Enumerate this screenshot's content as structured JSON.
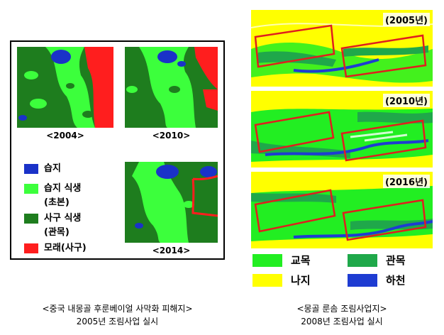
{
  "left": {
    "maps": [
      {
        "label": "<2004>"
      },
      {
        "label": "<2010>"
      },
      {
        "label": "<2014>"
      }
    ],
    "legend": [
      {
        "label": "습지",
        "color": "#1a32c8"
      },
      {
        "label": "습지 식생\n(초본)",
        "color": "#3cff3c"
      },
      {
        "label": "사구 식생\n(관목)",
        "color": "#1e7d1e"
      },
      {
        "label": "모래(사구)",
        "color": "#ff1e1e"
      }
    ],
    "caption_line1": "<중국 내몽골 후룬베이얼 사막화 피해지>",
    "caption_line2": "2005년 조림사업 실시"
  },
  "right": {
    "maps": [
      {
        "year": "(2005년)"
      },
      {
        "year": "(2010년)"
      },
      {
        "year": "(2016년)"
      }
    ],
    "legend": [
      {
        "label": "교목",
        "color": "#22ee22"
      },
      {
        "label": "관목",
        "color": "#1fa84a"
      },
      {
        "label": "나지",
        "color": "#ffff00"
      },
      {
        "label": "하천",
        "color": "#1e3cd2"
      }
    ],
    "caption_line1": "<몽골 룬솜 조림사업지>",
    "caption_line2": "2008년 조림사업 실시"
  }
}
